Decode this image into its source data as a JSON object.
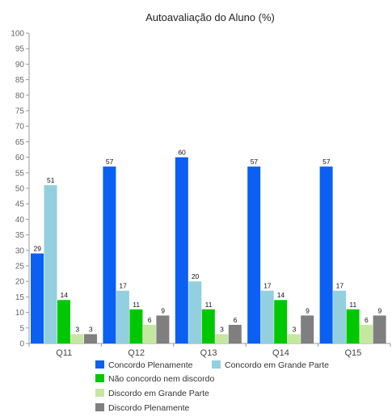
{
  "chart_data": {
    "type": "bar",
    "title": "Autoavaliação do Aluno (%)",
    "xlabel": "",
    "ylabel": "",
    "ylim": [
      0,
      100
    ],
    "ytick_step": 5,
    "grid": false,
    "legend_placement": "bottom",
    "categories": [
      "Q11",
      "Q12",
      "Q13",
      "Q14",
      "Q15"
    ],
    "series": [
      {
        "name": "Concordo Plenamente",
        "color": "#0b5ff2",
        "values": [
          29,
          57,
          60,
          57,
          57
        ]
      },
      {
        "name": "Concordo em Grande Parte",
        "color": "#92cfdf",
        "values": [
          51,
          17,
          20,
          17,
          17
        ]
      },
      {
        "name": "Não concordo nem discordo",
        "color": "#00c800",
        "values": [
          14,
          11,
          11,
          14,
          11
        ]
      },
      {
        "name": "Discordo em Grande Parte",
        "color": "#c5e8a0",
        "values": [
          3,
          6,
          3,
          3,
          6
        ]
      },
      {
        "name": "Discordo Plenamente",
        "color": "#7f7f7f",
        "values": [
          3,
          9,
          6,
          9,
          9
        ]
      }
    ]
  }
}
